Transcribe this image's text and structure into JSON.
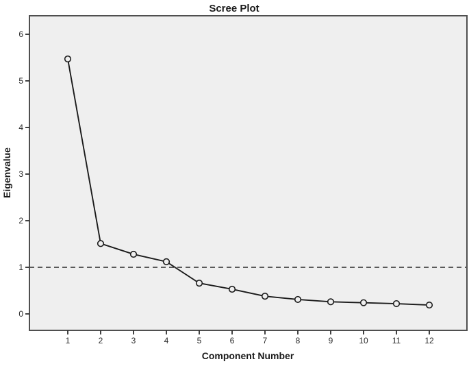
{
  "figure": {
    "title": "Scree Plot"
  },
  "chart_data": {
    "type": "line",
    "title": "Scree Plot",
    "xlabel": "Component Number",
    "ylabel": "Eigenvalue",
    "x": [
      1,
      2,
      3,
      4,
      5,
      6,
      7,
      8,
      9,
      10,
      11,
      12
    ],
    "series": [
      {
        "name": "Eigenvalue",
        "values": [
          5.47,
          1.51,
          1.28,
          1.12,
          0.66,
          0.53,
          0.38,
          0.31,
          0.26,
          0.24,
          0.22,
          0.19
        ]
      }
    ],
    "x_ticks": [
      "1",
      "2",
      "3",
      "4",
      "5",
      "6",
      "7",
      "8",
      "9",
      "10",
      "11",
      "12"
    ],
    "y_ticks": [
      "0",
      "1",
      "2",
      "3",
      "4",
      "5",
      "6"
    ],
    "y_tick_values": [
      0,
      1,
      2,
      3,
      4,
      5,
      6
    ],
    "ylim": [
      -0.35,
      6.4
    ],
    "grid": false,
    "legend": "none",
    "marker": "open-circle",
    "reference_line": {
      "y": 1,
      "style": "dashed"
    },
    "colors": {
      "plot_background": "#efefef",
      "frame": "#4f4f4f",
      "line": "#1b1b1b",
      "marker_stroke": "#1b1b1b",
      "marker_fill": "#efefef",
      "dashed_line": "#5a5a5a",
      "tick": "#2e2e2e",
      "text": "#1a1a1a"
    }
  }
}
